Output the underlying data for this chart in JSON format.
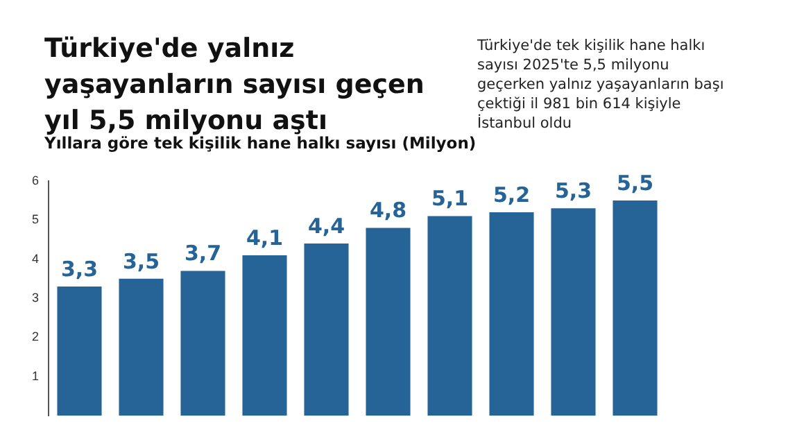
{
  "chart_data": {
    "type": "bar",
    "title": "Türkiye'de yalnız yaşayanların sayısı geçen yıl 5,5 milyonu aştı",
    "subtitle": "Yıllara göre tek kişilik hane halkı sayısı (Milyon)",
    "annotations": [
      "Türkiye'de tek kişilik hane halkı sayısı 2025'te 5,5 milyonu geçerken yalnız yaşayanların başı çektiği il 981 bin 614 kişiyle İstanbul oldu"
    ],
    "categories": [
      null,
      null,
      null,
      null,
      null,
      null,
      null,
      null,
      null,
      null
    ],
    "values": [
      3.3,
      3.5,
      3.7,
      4.1,
      4.4,
      4.8,
      5.1,
      5.2,
      5.3,
      5.5
    ],
    "value_labels": [
      "3,3",
      "3,5",
      "3,7",
      "4,1",
      "4,4",
      "4,8",
      "5,1",
      "5,2",
      "5,3",
      "5,5"
    ],
    "color": "#266396",
    "ylim": [
      0,
      6
    ],
    "yticks": [
      1,
      2,
      3,
      4,
      5,
      6
    ],
    "grid": false,
    "legend": false
  }
}
